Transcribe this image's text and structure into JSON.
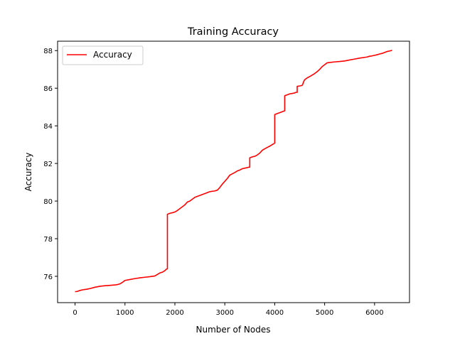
{
  "chart_data": {
    "type": "line",
    "title": "Training Accuracy",
    "xlabel": "Number of Nodes",
    "ylabel": "Accuracy",
    "xlim": [
      -350,
      6700
    ],
    "ylim": [
      74.6,
      88.5
    ],
    "xticks": [
      0,
      1000,
      2000,
      3000,
      4000,
      5000,
      6000
    ],
    "yticks": [
      76,
      78,
      80,
      82,
      84,
      86,
      88
    ],
    "grid": false,
    "legend_position": "top-left",
    "series": [
      {
        "name": "Accuracy",
        "color": "#ff0000",
        "x": [
          0,
          50,
          100,
          150,
          200,
          250,
          300,
          400,
          500,
          600,
          700,
          800,
          850,
          900,
          950,
          980,
          1000,
          1100,
          1200,
          1300,
          1400,
          1500,
          1600,
          1650,
          1700,
          1750,
          1800,
          1830,
          1850,
          1850,
          1900,
          1950,
          2000,
          2050,
          2100,
          2150,
          2200,
          2250,
          2300,
          2350,
          2400,
          2450,
          2500,
          2550,
          2600,
          2650,
          2700,
          2750,
          2800,
          2850,
          2900,
          2920,
          2950,
          3000,
          3050,
          3100,
          3150,
          3200,
          3250,
          3300,
          3350,
          3400,
          3450,
          3480,
          3500,
          3500,
          3550,
          3600,
          3650,
          3700,
          3750,
          3800,
          3850,
          3900,
          3950,
          3980,
          4000,
          4000,
          4050,
          4100,
          4150,
          4180,
          4200,
          4200,
          4250,
          4300,
          4350,
          4400,
          4420,
          4450,
          4450,
          4500,
          4550,
          4560,
          4580,
          4600,
          4650,
          4700,
          4750,
          4800,
          4850,
          4900,
          4950,
          5000,
          5050,
          5100,
          5200,
          5300,
          5400,
          5500,
          5600,
          5700,
          5750,
          5800,
          5850,
          5900,
          5950,
          6000,
          6050,
          6100,
          6150,
          6200,
          6250,
          6300,
          6330,
          6350
        ],
        "values": [
          75.18,
          75.2,
          75.25,
          75.28,
          75.3,
          75.32,
          75.35,
          75.42,
          75.47,
          75.5,
          75.52,
          75.54,
          75.56,
          75.6,
          75.68,
          75.74,
          75.78,
          75.83,
          75.88,
          75.92,
          75.95,
          75.98,
          76.02,
          76.1,
          76.18,
          76.22,
          76.3,
          76.38,
          76.4,
          79.3,
          79.35,
          79.38,
          79.42,
          79.5,
          79.6,
          79.7,
          79.8,
          79.95,
          80.0,
          80.1,
          80.2,
          80.25,
          80.3,
          80.35,
          80.4,
          80.45,
          80.5,
          80.52,
          80.54,
          80.58,
          80.72,
          80.8,
          80.9,
          81.05,
          81.2,
          81.38,
          81.45,
          81.52,
          81.6,
          81.65,
          81.72,
          81.75,
          81.78,
          81.8,
          81.8,
          82.3,
          82.35,
          82.38,
          82.45,
          82.55,
          82.7,
          82.78,
          82.85,
          82.92,
          83.0,
          83.05,
          83.08,
          84.6,
          84.65,
          84.7,
          84.75,
          84.78,
          84.8,
          85.6,
          85.65,
          85.7,
          85.72,
          85.75,
          85.78,
          85.78,
          86.1,
          86.12,
          86.15,
          86.2,
          86.35,
          86.45,
          86.55,
          86.62,
          86.7,
          86.78,
          86.88,
          87.0,
          87.15,
          87.25,
          87.35,
          87.37,
          87.4,
          87.42,
          87.45,
          87.5,
          87.55,
          87.6,
          87.62,
          87.64,
          87.66,
          87.7,
          87.72,
          87.75,
          87.78,
          87.82,
          87.85,
          87.9,
          87.95,
          87.98,
          88.0,
          88.02
        ]
      }
    ]
  }
}
